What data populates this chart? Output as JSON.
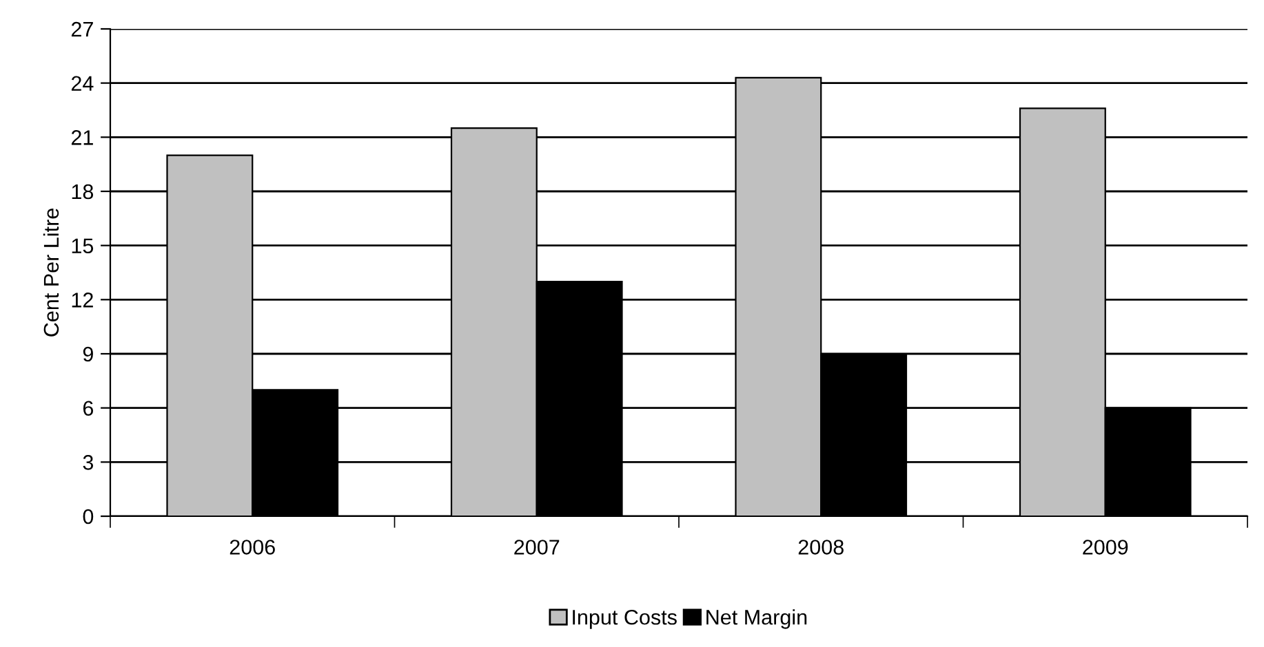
{
  "chart_data": {
    "type": "bar",
    "ylabel": "Cent Per Litre",
    "categories": [
      "2006",
      "2007",
      "2008",
      "2009"
    ],
    "series": [
      {
        "name": "Input Costs",
        "color": "#c0c0c0",
        "values": [
          20.0,
          21.5,
          24.3,
          22.6
        ]
      },
      {
        "name": "Net Margin",
        "color": "#000000",
        "values": [
          7.0,
          13.0,
          9.0,
          6.0
        ]
      }
    ],
    "ylim": [
      0,
      27
    ],
    "yticks": [
      0,
      3,
      6,
      9,
      12,
      15,
      18,
      21,
      24,
      27
    ],
    "grid": "y",
    "legend": "bottom"
  }
}
